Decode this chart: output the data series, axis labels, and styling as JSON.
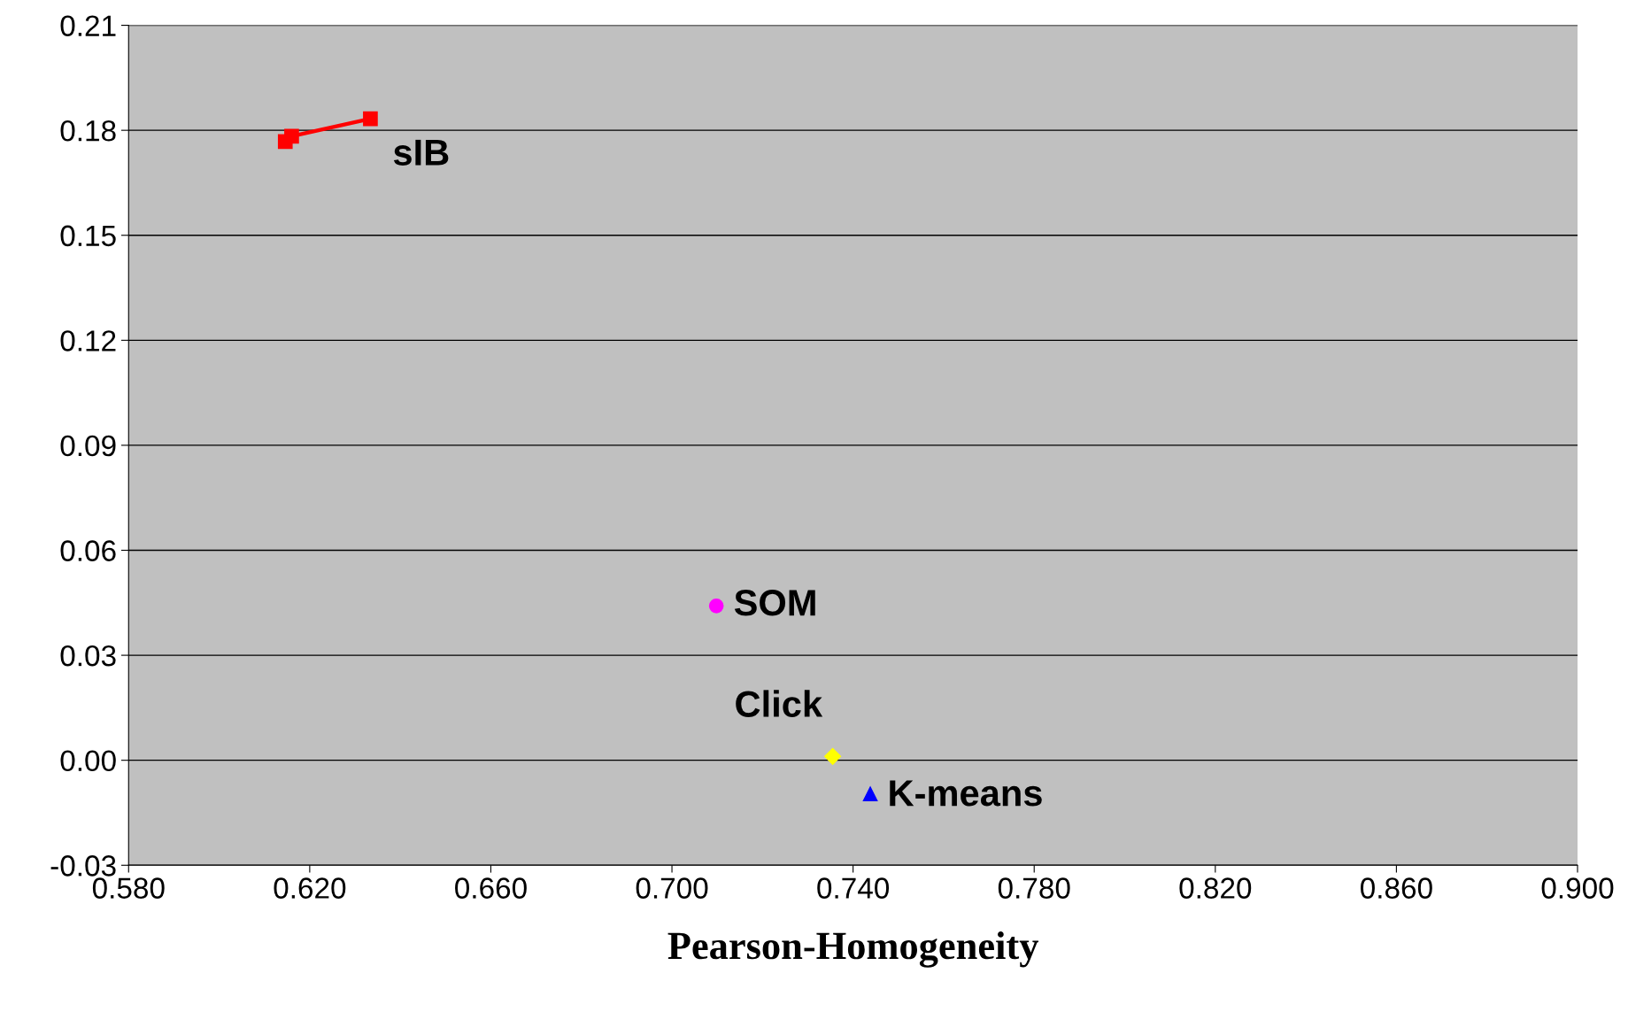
{
  "chart_data": {
    "type": "scatter",
    "xlabel": "Pearson-Homogeneity",
    "xlim": [
      0.58,
      0.9
    ],
    "xticks": [
      {
        "value": 0.58,
        "label": "0.580"
      },
      {
        "value": 0.62,
        "label": "0.620"
      },
      {
        "value": 0.66,
        "label": "0.660"
      },
      {
        "value": 0.7,
        "label": "0.700"
      },
      {
        "value": 0.74,
        "label": "0.740"
      },
      {
        "value": 0.78,
        "label": "0.780"
      },
      {
        "value": 0.82,
        "label": "0.820"
      },
      {
        "value": 0.86,
        "label": "0.860"
      },
      {
        "value": 0.9,
        "label": "0.900"
      }
    ],
    "ylim": [
      -0.03,
      0.21
    ],
    "yticks": [
      {
        "value": -0.03,
        "label": "-0.03"
      },
      {
        "value": 0.0,
        "label": "0.00"
      },
      {
        "value": 0.03,
        "label": "0.03"
      },
      {
        "value": 0.06,
        "label": "0.06"
      },
      {
        "value": 0.09,
        "label": "0.09"
      },
      {
        "value": 0.12,
        "label": "0.12"
      },
      {
        "value": 0.15,
        "label": "0.15"
      },
      {
        "value": 0.18,
        "label": "0.18"
      },
      {
        "value": 0.21,
        "label": "0.21"
      }
    ],
    "grid": "y",
    "legend": false,
    "series": [
      {
        "name": "sIB",
        "type": "line",
        "marker": "square",
        "color": "#ff0000",
        "x": [
          0.6146,
          0.616,
          0.6334
        ],
        "values": [
          0.1768,
          0.1783,
          0.1833
        ]
      },
      {
        "name": "SOM",
        "marker": "circle",
        "color": "#ff00ff",
        "x": [
          0.7098
        ],
        "values": [
          0.0441
        ]
      },
      {
        "name": "Click",
        "marker": "diamond",
        "color": "#ffff00",
        "x": [
          0.7355
        ],
        "values": [
          0.0011
        ]
      },
      {
        "name": "K-means",
        "marker": "triangle",
        "color": "#0000ff",
        "x": [
          0.7438
        ],
        "values": [
          -0.0096
        ]
      }
    ]
  }
}
